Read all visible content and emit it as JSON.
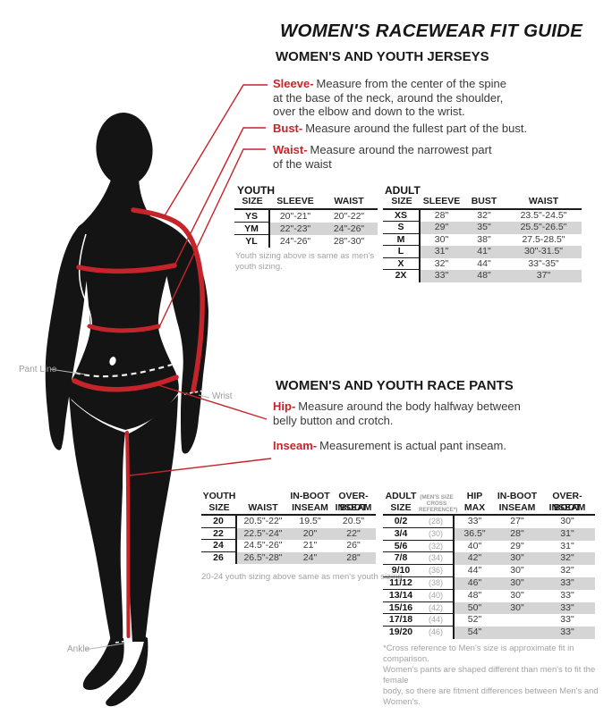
{
  "title": "WOMEN'S RACEWEAR FIT GUIDE",
  "colors": {
    "accent": "#c5242b",
    "row_shade": "#d5d5d5",
    "silhouette": "#141414"
  },
  "figure": {
    "labels": {
      "pant_line": "Pant Line",
      "wrist": "Wrist",
      "ankle": "Ankle"
    }
  },
  "jerseys": {
    "heading": "WOMEN'S AND YOUTH JERSEYS",
    "measurements": [
      {
        "term": "Sleeve-",
        "lines": [
          "Measure from the center of the spine",
          "at the base of the neck, around the shoulder,",
          "over the elbow and down to the wrist."
        ]
      },
      {
        "term": "Bust-",
        "lines": [
          "Measure around the fullest part of the bust."
        ]
      },
      {
        "term": "Waist-",
        "lines": [
          "Measure around the narrowest part",
          "of the waist"
        ]
      }
    ],
    "youth_table": {
      "label": "YOUTH",
      "columns": [
        {
          "lines": [
            "SIZE"
          ]
        },
        {
          "lines": [
            "SLEEVE"
          ]
        },
        {
          "lines": [
            "WAIST"
          ]
        }
      ],
      "rows": [
        [
          "YS",
          "20\"-21\"",
          "20\"-22\""
        ],
        [
          "YM",
          "22\"-23\"",
          "24\"-26\""
        ],
        [
          "YL",
          "24\"-26\"",
          "28\"-30\""
        ]
      ],
      "note": [
        "Youth sizing above is same as men's",
        "youth sizing."
      ]
    },
    "adult_table": {
      "label": "ADULT",
      "columns": [
        {
          "lines": [
            "SIZE"
          ]
        },
        {
          "lines": [
            "SLEEVE"
          ]
        },
        {
          "lines": [
            "BUST"
          ]
        },
        {
          "lines": [
            "WAIST"
          ]
        }
      ],
      "rows": [
        [
          "XS",
          "28\"",
          "32\"",
          "23.5\"-24.5\""
        ],
        [
          "S",
          "29\"",
          "35\"",
          "25.5\"-26.5\""
        ],
        [
          "M",
          "30\"",
          "38\"",
          "27.5-28.5\""
        ],
        [
          "L",
          "31\"",
          "41\"",
          "30\"-31.5\""
        ],
        [
          "X",
          "32\"",
          "44\"",
          "33\"-35\""
        ],
        [
          "2X",
          "33\"",
          "48\"",
          "37\""
        ]
      ]
    }
  },
  "pants": {
    "heading": "WOMEN'S AND YOUTH RACE PANTS",
    "measurements": [
      {
        "term": "Hip-",
        "lines": [
          "Measure around the body halfway between",
          "belly button and crotch."
        ]
      },
      {
        "term": "Inseam-",
        "lines": [
          "Measurement is actual pant inseam."
        ]
      }
    ],
    "youth_table": {
      "columns": [
        {
          "lines": [
            "YOUTH",
            "SIZE"
          ]
        },
        {
          "lines": [
            "",
            "WAIST"
          ]
        },
        {
          "lines": [
            "IN-BOOT",
            "INSEAM"
          ]
        },
        {
          "lines": [
            "OVER-BOOT",
            "INSEAM"
          ]
        }
      ],
      "rows": [
        [
          "20",
          "20.5\"-22\"",
          "19.5\"",
          "20.5\""
        ],
        [
          "22",
          "22.5\"-24\"",
          "20\"",
          "22\""
        ],
        [
          "24",
          "24.5\"-26\"",
          "21\"",
          "26\""
        ],
        [
          "26",
          "26.5\"-28\"",
          "24\"",
          "28\""
        ]
      ],
      "note": "20-24 youth sizing above same as men's youth sizing"
    },
    "adult_table": {
      "columns": [
        {
          "lines": [
            "ADULT",
            "SIZE"
          ]
        },
        {
          "small": true,
          "lines": [
            "(MEN'S SIZE",
            "CROSS",
            "REFERENCE*)"
          ]
        },
        {
          "lines": [
            "HIP",
            "MAX"
          ]
        },
        {
          "lines": [
            "IN-BOOT",
            "INSEAM"
          ]
        },
        {
          "lines": [
            "OVER-BOOT",
            "INSEAM"
          ]
        }
      ],
      "rows": [
        [
          "0/2",
          "(28)",
          "33\"",
          "27\"",
          "30\""
        ],
        [
          "3/4",
          "(30)",
          "36.5\"",
          "28\"",
          "31\""
        ],
        [
          "5/6",
          "(32)",
          "40\"",
          "29\"",
          "31\""
        ],
        [
          "7/8",
          "(34)",
          "42\"",
          "30\"",
          "32\""
        ],
        [
          "9/10",
          "(36)",
          "44\"",
          "30\"",
          "32\""
        ],
        [
          "11/12",
          "(38)",
          "46\"",
          "30\"",
          "33\""
        ],
        [
          "13/14",
          "(40)",
          "48\"",
          "30\"",
          "33\""
        ],
        [
          "15/16",
          "(42)",
          "50\"",
          "30\"",
          "33\""
        ],
        [
          "17/18",
          "(44)",
          "52\"",
          "",
          "33\""
        ],
        [
          "19/20",
          "(46)",
          "54\"",
          "",
          "33\""
        ]
      ],
      "footnote": [
        "*Cross reference to Men's size is approximate fit in comparison.",
        "Women's pants are shaped different than men's to fit the female",
        "body, so there are fitment differences between Men's and",
        "Women's."
      ]
    }
  }
}
